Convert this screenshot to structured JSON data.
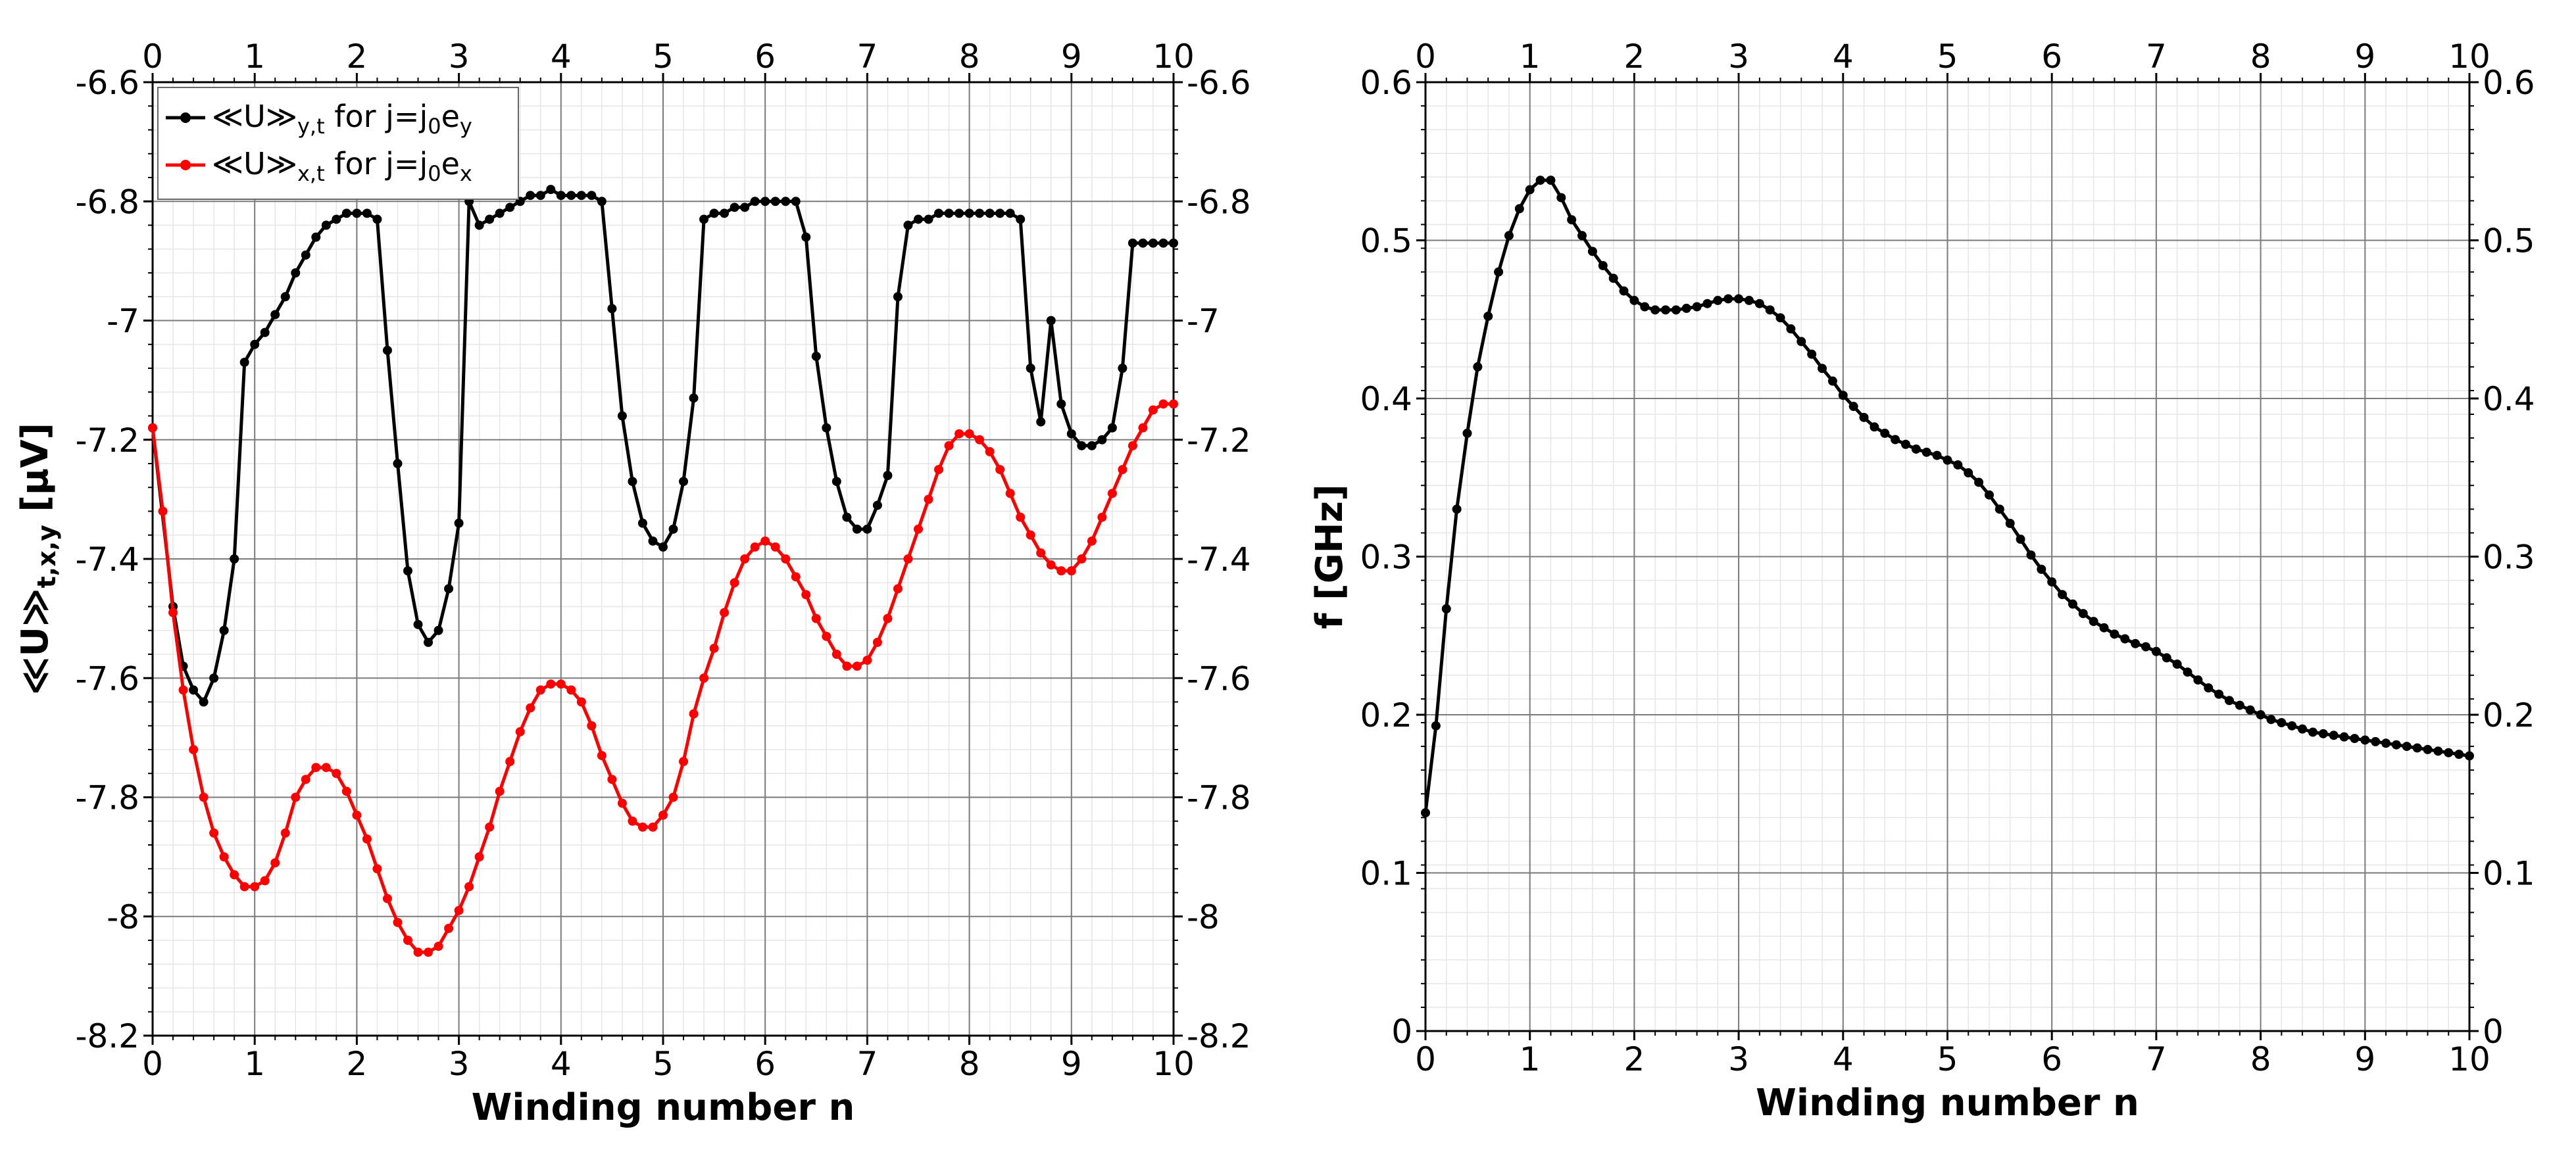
{
  "chart_data": [
    {
      "type": "line",
      "xlabel": "Winding number n",
      "ylabel": "≪U≫",
      "ylabel_subscript": "t,x,y",
      "ylabel_unit": " [μV]",
      "xlim": [
        0,
        10
      ],
      "ylim": [
        -8.2,
        -6.6
      ],
      "xticks": [
        0,
        1,
        2,
        3,
        4,
        5,
        6,
        7,
        8,
        9,
        10
      ],
      "xtick_labels": [
        "0",
        "1",
        "2",
        "3",
        "4",
        "5",
        "6",
        "7",
        "8",
        "9",
        "10"
      ],
      "yticks": [
        -8.2,
        -8,
        -7.8,
        -7.6,
        -7.4,
        -7.2,
        -7,
        -6.8,
        -6.6
      ],
      "ytick_labels": [
        "-8.2",
        "-8",
        "-7.8",
        "-7.6",
        "-7.4",
        "-7.2",
        "-7",
        "-6.8",
        "-6.6"
      ],
      "grid": true,
      "legend_position": "top-left",
      "series": [
        {
          "legend_main": "≪U≫",
          "legend_sub": "y,t",
          "legend_mid": " for j=j",
          "legend_sub2": "0",
          "legend_end": "e",
          "legend_sub3": "y",
          "color": "#000000",
          "x": [
            0.0,
            0.2,
            0.3,
            0.4,
            0.5,
            0.6,
            0.7,
            0.8,
            0.9,
            1.0,
            1.1,
            1.2,
            1.3,
            1.4,
            1.5,
            1.6,
            1.7,
            1.8,
            1.9,
            2.0,
            2.1,
            2.2,
            2.3,
            2.4,
            2.5,
            2.6,
            2.7,
            2.8,
            2.9,
            3.0,
            3.1,
            3.2,
            3.3,
            3.4,
            3.5,
            3.6,
            3.7,
            3.8,
            3.9,
            4.0,
            4.1,
            4.2,
            4.3,
            4.4,
            4.5,
            4.6,
            4.7,
            4.8,
            4.9,
            5.0,
            5.1,
            5.2,
            5.3,
            5.4,
            5.5,
            5.6,
            5.7,
            5.8,
            5.9,
            6.0,
            6.1,
            6.2,
            6.3,
            6.4,
            6.5,
            6.6,
            6.7,
            6.8,
            6.9,
            7.0,
            7.1,
            7.2,
            7.3,
            7.4,
            7.5,
            7.6,
            7.7,
            7.8,
            7.9,
            8.0,
            8.1,
            8.2,
            8.3,
            8.4,
            8.5,
            8.6,
            8.7,
            8.8,
            8.9,
            9.0,
            9.1,
            9.2,
            9.3,
            9.4,
            9.5,
            9.6,
            9.7,
            9.8,
            9.9,
            10.0
          ],
          "values": [
            -7.18,
            -7.48,
            -7.58,
            -7.62,
            -7.64,
            -7.6,
            -7.52,
            -7.4,
            -7.07,
            -7.04,
            -7.02,
            -6.99,
            -6.96,
            -6.92,
            -6.89,
            -6.86,
            -6.84,
            -6.83,
            -6.82,
            -6.82,
            -6.82,
            -6.83,
            -7.05,
            -7.24,
            -7.42,
            -7.51,
            -7.54,
            -7.52,
            -7.45,
            -7.34,
            -6.8,
            -6.84,
            -6.83,
            -6.82,
            -6.81,
            -6.8,
            -6.79,
            -6.79,
            -6.78,
            -6.79,
            -6.79,
            -6.79,
            -6.79,
            -6.8,
            -6.98,
            -7.16,
            -7.27,
            -7.34,
            -7.37,
            -7.38,
            -7.35,
            -7.27,
            -7.13,
            -6.83,
            -6.82,
            -6.82,
            -6.81,
            -6.81,
            -6.8,
            -6.8,
            -6.8,
            -6.8,
            -6.8,
            -6.86,
            -7.06,
            -7.18,
            -7.27,
            -7.33,
            -7.35,
            -7.35,
            -7.31,
            -7.26,
            -6.96,
            -6.84,
            -6.83,
            -6.83,
            -6.82,
            -6.82,
            -6.82,
            -6.82,
            -6.82,
            -6.82,
            -6.82,
            -6.82,
            -6.83,
            -7.08,
            -7.17,
            -7.0,
            -7.14,
            -7.19,
            -7.21,
            -7.21,
            -7.2,
            -7.18,
            -7.08,
            -6.87,
            -6.87,
            -6.87,
            -6.87,
            -6.87
          ]
        },
        {
          "legend_main": "≪U≫",
          "legend_sub": "x,t",
          "legend_mid": " for j=j",
          "legend_sub2": "0",
          "legend_end": "e",
          "legend_sub3": "x",
          "color": "#ff0000",
          "x": [
            0.0,
            0.1,
            0.2,
            0.3,
            0.4,
            0.5,
            0.6,
            0.7,
            0.8,
            0.9,
            1.0,
            1.1,
            1.2,
            1.3,
            1.4,
            1.5,
            1.6,
            1.7,
            1.8,
            1.9,
            2.0,
            2.1,
            2.2,
            2.3,
            2.4,
            2.5,
            2.6,
            2.7,
            2.8,
            2.9,
            3.0,
            3.1,
            3.2,
            3.3,
            3.4,
            3.5,
            3.6,
            3.7,
            3.8,
            3.9,
            4.0,
            4.1,
            4.2,
            4.3,
            4.4,
            4.5,
            4.6,
            4.7,
            4.8,
            4.9,
            5.0,
            5.1,
            5.2,
            5.3,
            5.4,
            5.5,
            5.6,
            5.7,
            5.8,
            5.9,
            6.0,
            6.1,
            6.2,
            6.3,
            6.4,
            6.5,
            6.6,
            6.7,
            6.8,
            6.9,
            7.0,
            7.1,
            7.2,
            7.3,
            7.4,
            7.5,
            7.6,
            7.7,
            7.8,
            7.9,
            8.0,
            8.1,
            8.2,
            8.3,
            8.4,
            8.5,
            8.6,
            8.7,
            8.8,
            8.9,
            9.0,
            9.1,
            9.2,
            9.3,
            9.4,
            9.5,
            9.6,
            9.7,
            9.8,
            9.9,
            10.0
          ],
          "values": [
            -7.18,
            -7.32,
            -7.49,
            -7.62,
            -7.72,
            -7.8,
            -7.86,
            -7.9,
            -7.93,
            -7.95,
            -7.95,
            -7.94,
            -7.91,
            -7.86,
            -7.8,
            -7.77,
            -7.75,
            -7.75,
            -7.76,
            -7.79,
            -7.83,
            -7.87,
            -7.92,
            -7.97,
            -8.01,
            -8.04,
            -8.06,
            -8.06,
            -8.05,
            -8.02,
            -7.99,
            -7.95,
            -7.9,
            -7.85,
            -7.79,
            -7.74,
            -7.69,
            -7.65,
            -7.62,
            -7.61,
            -7.61,
            -7.62,
            -7.64,
            -7.68,
            -7.73,
            -7.77,
            -7.81,
            -7.84,
            -7.85,
            -7.85,
            -7.83,
            -7.8,
            -7.74,
            -7.66,
            -7.6,
            -7.55,
            -7.49,
            -7.44,
            -7.4,
            -7.38,
            -7.37,
            -7.38,
            -7.4,
            -7.43,
            -7.46,
            -7.5,
            -7.53,
            -7.56,
            -7.58,
            -7.58,
            -7.57,
            -7.54,
            -7.5,
            -7.45,
            -7.4,
            -7.35,
            -7.3,
            -7.25,
            -7.21,
            -7.19,
            -7.19,
            -7.2,
            -7.22,
            -7.25,
            -7.29,
            -7.33,
            -7.36,
            -7.39,
            -7.41,
            -7.42,
            -7.42,
            -7.4,
            -7.37,
            -7.33,
            -7.29,
            -7.25,
            -7.21,
            -7.18,
            -7.15,
            -7.14,
            -7.14
          ]
        }
      ]
    },
    {
      "type": "line",
      "xlabel": "Winding number n",
      "ylabel": "f [GHz]",
      "xlim": [
        0,
        10
      ],
      "ylim": [
        0,
        0.6
      ],
      "xticks": [
        0,
        1,
        2,
        3,
        4,
        5,
        6,
        7,
        8,
        9,
        10
      ],
      "xtick_labels": [
        "0",
        "1",
        "2",
        "3",
        "4",
        "5",
        "6",
        "7",
        "8",
        "9",
        "10"
      ],
      "yticks": [
        0,
        0.1,
        0.2,
        0.3,
        0.4,
        0.5,
        0.6
      ],
      "ytick_labels": [
        "0",
        "0.1",
        "0.2",
        "0.3",
        "0.4",
        "0.5",
        "0.6"
      ],
      "grid": true,
      "series": [
        {
          "color": "#000000",
          "x": [
            0.0,
            0.1,
            0.2,
            0.3,
            0.4,
            0.5,
            0.6,
            0.7,
            0.8,
            0.9,
            1.0,
            1.1,
            1.2,
            1.3,
            1.4,
            1.5,
            1.6,
            1.7,
            1.8,
            1.9,
            2.0,
            2.1,
            2.2,
            2.3,
            2.4,
            2.5,
            2.6,
            2.7,
            2.8,
            2.9,
            3.0,
            3.1,
            3.2,
            3.3,
            3.4,
            3.5,
            3.6,
            3.7,
            3.8,
            3.9,
            4.0,
            4.1,
            4.2,
            4.3,
            4.4,
            4.5,
            4.6,
            4.7,
            4.8,
            4.9,
            5.0,
            5.1,
            5.2,
            5.3,
            5.4,
            5.5,
            5.6,
            5.7,
            5.8,
            5.9,
            6.0,
            6.1,
            6.2,
            6.3,
            6.4,
            6.5,
            6.6,
            6.7,
            6.8,
            6.9,
            7.0,
            7.1,
            7.2,
            7.3,
            7.4,
            7.5,
            7.6,
            7.7,
            7.8,
            7.9,
            8.0,
            8.1,
            8.2,
            8.3,
            8.4,
            8.5,
            8.6,
            8.7,
            8.8,
            8.9,
            9.0,
            9.1,
            9.2,
            9.3,
            9.4,
            9.5,
            9.6,
            9.7,
            9.8,
            9.9,
            10.0
          ],
          "values": [
            0.138,
            0.193,
            0.267,
            0.33,
            0.378,
            0.42,
            0.452,
            0.48,
            0.503,
            0.52,
            0.532,
            0.538,
            0.538,
            0.527,
            0.513,
            0.503,
            0.493,
            0.484,
            0.476,
            0.468,
            0.462,
            0.458,
            0.456,
            0.456,
            0.456,
            0.457,
            0.458,
            0.46,
            0.462,
            0.463,
            0.463,
            0.462,
            0.46,
            0.456,
            0.451,
            0.444,
            0.436,
            0.428,
            0.419,
            0.411,
            0.402,
            0.395,
            0.388,
            0.382,
            0.378,
            0.374,
            0.371,
            0.368,
            0.366,
            0.364,
            0.361,
            0.358,
            0.353,
            0.347,
            0.339,
            0.33,
            0.321,
            0.311,
            0.301,
            0.292,
            0.284,
            0.276,
            0.27,
            0.264,
            0.259,
            0.255,
            0.251,
            0.248,
            0.245,
            0.243,
            0.24,
            0.236,
            0.232,
            0.227,
            0.222,
            0.217,
            0.213,
            0.209,
            0.206,
            0.203,
            0.2,
            0.197,
            0.195,
            0.193,
            0.191,
            0.189,
            0.188,
            0.187,
            0.186,
            0.185,
            0.184,
            0.183,
            0.182,
            0.181,
            0.18,
            0.179,
            0.178,
            0.177,
            0.176,
            0.175,
            0.174
          ]
        }
      ]
    }
  ]
}
